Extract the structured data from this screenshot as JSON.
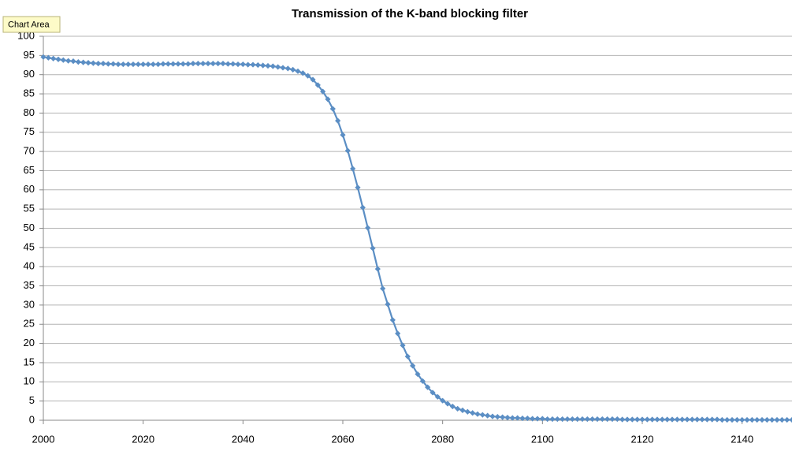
{
  "tooltip": "Chart Area",
  "chart_data": {
    "type": "line",
    "title": "Transmission of the K-band blocking filter",
    "x": [
      2000,
      2001,
      2002,
      2003,
      2004,
      2005,
      2006,
      2007,
      2008,
      2009,
      2010,
      2011,
      2012,
      2013,
      2014,
      2015,
      2016,
      2017,
      2018,
      2019,
      2020,
      2021,
      2022,
      2023,
      2024,
      2025,
      2026,
      2027,
      2028,
      2029,
      2030,
      2031,
      2032,
      2033,
      2034,
      2035,
      2036,
      2037,
      2038,
      2039,
      2040,
      2041,
      2042,
      2043,
      2044,
      2045,
      2046,
      2047,
      2048,
      2049,
      2050,
      2051,
      2052,
      2053,
      2054,
      2055,
      2056,
      2057,
      2058,
      2059,
      2060,
      2061,
      2062,
      2063,
      2064,
      2065,
      2066,
      2067,
      2068,
      2069,
      2070,
      2071,
      2072,
      2073,
      2074,
      2075,
      2076,
      2077,
      2078,
      2079,
      2080,
      2081,
      2082,
      2083,
      2084,
      2085,
      2086,
      2087,
      2088,
      2089,
      2090,
      2091,
      2092,
      2093,
      2094,
      2095,
      2096,
      2097,
      2098,
      2099,
      2100,
      2101,
      2102,
      2103,
      2104,
      2105,
      2106,
      2107,
      2108,
      2109,
      2110,
      2111,
      2112,
      2113,
      2114,
      2115,
      2116,
      2117,
      2118,
      2119,
      2120,
      2121,
      2122,
      2123,
      2124,
      2125,
      2126,
      2127,
      2128,
      2129,
      2130,
      2131,
      2132,
      2133,
      2134,
      2135,
      2136,
      2137,
      2138,
      2139,
      2140,
      2141,
      2142,
      2143,
      2144,
      2145,
      2146,
      2147,
      2148,
      2149,
      2150
    ],
    "series": [
      {
        "color": "#5b8ec4",
        "values": [
          94.6,
          94.4,
          94.2,
          94.0,
          93.8,
          93.6,
          93.5,
          93.3,
          93.2,
          93.1,
          93.0,
          92.9,
          92.9,
          92.8,
          92.8,
          92.7,
          92.7,
          92.7,
          92.7,
          92.7,
          92.7,
          92.7,
          92.7,
          92.7,
          92.8,
          92.8,
          92.8,
          92.8,
          92.8,
          92.8,
          92.9,
          92.9,
          92.9,
          92.9,
          92.9,
          92.9,
          92.9,
          92.8,
          92.8,
          92.7,
          92.7,
          92.6,
          92.6,
          92.5,
          92.4,
          92.3,
          92.2,
          92.0,
          91.8,
          91.6,
          91.3,
          90.9,
          90.4,
          89.7,
          88.7,
          87.3,
          85.6,
          83.6,
          81.1,
          78.0,
          74.3,
          70.2,
          65.5,
          60.6,
          55.4,
          50.1,
          44.8,
          39.4,
          34.3,
          30.2,
          26.1,
          22.6,
          19.5,
          16.6,
          14.2,
          12.0,
          10.2,
          8.6,
          7.2,
          6.1,
          5.1,
          4.3,
          3.6,
          3.0,
          2.6,
          2.2,
          1.9,
          1.6,
          1.4,
          1.2,
          1.0,
          0.9,
          0.8,
          0.7,
          0.6,
          0.6,
          0.5,
          0.5,
          0.4,
          0.4,
          0.4,
          0.3,
          0.3,
          0.3,
          0.3,
          0.3,
          0.3,
          0.3,
          0.3,
          0.3,
          0.3,
          0.3,
          0.3,
          0.3,
          0.3,
          0.3,
          0.2,
          0.2,
          0.2,
          0.2,
          0.2,
          0.2,
          0.2,
          0.2,
          0.2,
          0.2,
          0.2,
          0.2,
          0.2,
          0.2,
          0.2,
          0.2,
          0.2,
          0.2,
          0.2,
          0.2,
          0.1,
          0.1,
          0.1,
          0.1,
          0.1,
          0.1,
          0.1,
          0.1,
          0.1,
          0.1,
          0.1,
          0.1,
          0.1,
          0.1,
          0.1
        ]
      }
    ],
    "xlim": [
      2000,
      2150
    ],
    "xticks": [
      2000,
      2020,
      2040,
      2060,
      2080,
      2100,
      2120,
      2140
    ],
    "ylim": [
      0,
      100
    ],
    "yticks": [
      0,
      5,
      10,
      15,
      20,
      25,
      30,
      35,
      40,
      45,
      50,
      55,
      60,
      65,
      70,
      75,
      80,
      85,
      90,
      95,
      100
    ],
    "grid": true,
    "markers": "diamond"
  }
}
